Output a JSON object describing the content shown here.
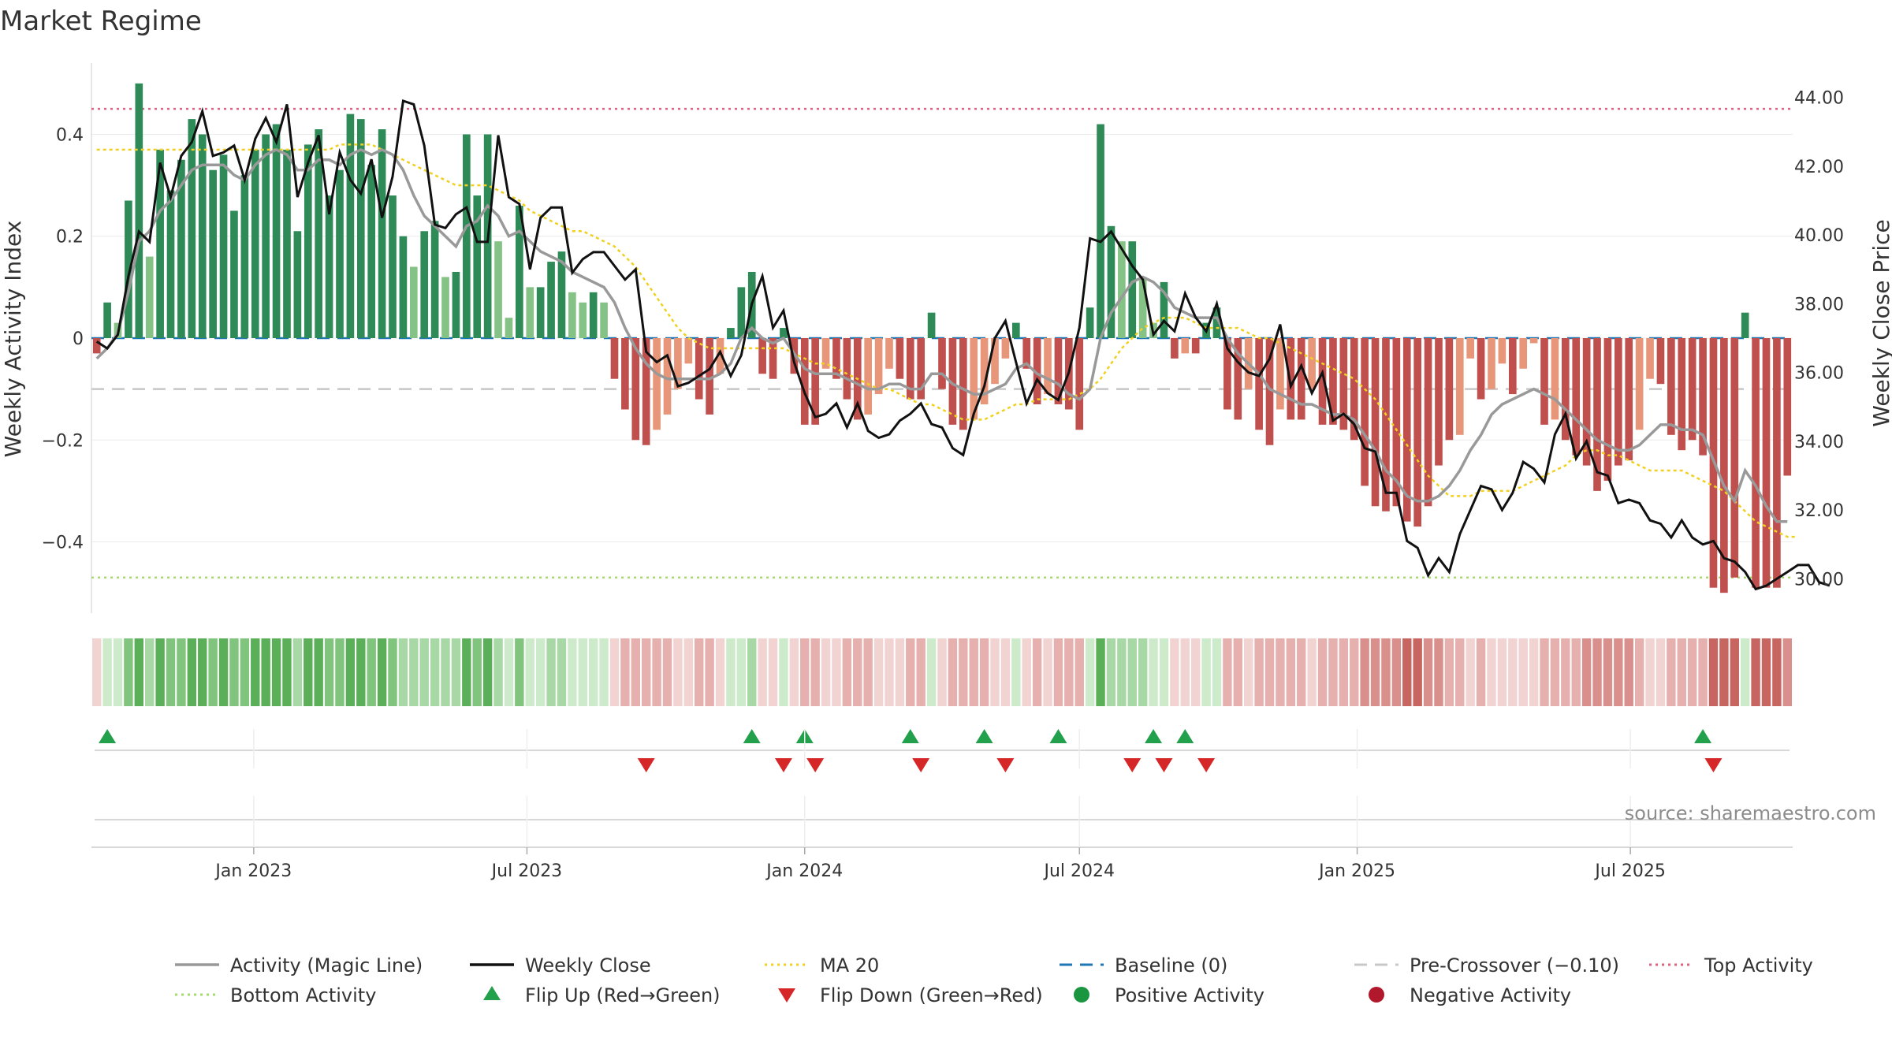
{
  "title": "Market Regime",
  "source": "source: sharemaestro.com",
  "colors": {
    "dark_green": "#2e8b57",
    "light_green": "#85c285",
    "dark_red": "#c0504d",
    "light_red": "#e8967a",
    "magic_line": "#999999",
    "weekly_close": "#111111",
    "ma20": "#f0d020",
    "baseline": "#1f77b4",
    "pre_crossover": "#c8c8c8",
    "top_activity": "#e06080",
    "bottom_activity": "#a8d870",
    "flip_up": "#22a04b",
    "flip_down": "#d62728",
    "positive": "#1a9641",
    "negative": "#b2182b"
  },
  "chart_data": {
    "type": "bar",
    "start_week": "2022-09-19",
    "x_ticks": [
      "Jan 2023",
      "Jul 2023",
      "Jan 2024",
      "Jul 2024",
      "Jan 2025",
      "Jul 2025"
    ],
    "x_tick_dates": [
      "2023-01-01",
      "2023-07-01",
      "2024-01-01",
      "2024-07-01",
      "2025-01-01",
      "2025-07-01"
    ],
    "y_left": {
      "label": "Weekly Activity Index",
      "ticks": [
        "−0.4",
        "−0.2",
        "0",
        "0.2",
        "0.4"
      ],
      "tick_values": [
        -0.4,
        -0.2,
        0,
        0.2,
        0.4
      ],
      "range": [
        -0.54,
        0.54
      ]
    },
    "y_right": {
      "label": "Weekly Close Price",
      "ticks": [
        "30.00",
        "32.00",
        "34.00",
        "36.00",
        "38.00",
        "40.00",
        "42.00",
        "44.00"
      ],
      "tick_values": [
        30,
        32,
        34,
        36,
        38,
        40,
        42,
        44
      ],
      "range": [
        29.0,
        45.0
      ]
    },
    "levels": {
      "baseline": 0,
      "pre_crossover": -0.1,
      "top_activity": 0.45,
      "bottom_activity": -0.47
    },
    "activity": [
      -0.03,
      0.07,
      0.03,
      0.27,
      0.5,
      0.16,
      0.37,
      0.29,
      0.35,
      0.43,
      0.4,
      0.33,
      0.36,
      0.25,
      0.32,
      0.37,
      0.4,
      0.42,
      0.37,
      0.21,
      0.38,
      0.41,
      0.28,
      0.33,
      0.44,
      0.43,
      0.34,
      0.41,
      0.28,
      0.2,
      0.14,
      0.21,
      0.23,
      0.12,
      0.13,
      0.4,
      0.28,
      0.4,
      0.19,
      0.04,
      0.26,
      0.1,
      0.1,
      0.15,
      0.17,
      0.09,
      0.07,
      0.09,
      0.07,
      -0.08,
      -0.14,
      -0.2,
      -0.21,
      -0.18,
      -0.15,
      -0.1,
      -0.05,
      -0.12,
      -0.15,
      -0.07,
      0.02,
      0.1,
      0.13,
      -0.07,
      -0.08,
      0.02,
      -0.07,
      -0.17,
      -0.17,
      -0.06,
      -0.08,
      -0.12,
      -0.16,
      -0.15,
      -0.11,
      -0.06,
      -0.08,
      -0.12,
      -0.12,
      0.05,
      -0.1,
      -0.17,
      -0.18,
      -0.16,
      -0.13,
      -0.09,
      -0.04,
      0.03,
      -0.06,
      -0.13,
      -0.11,
      -0.13,
      -0.14,
      -0.18,
      0.06,
      0.42,
      0.22,
      0.19,
      0.19,
      0.12,
      0.03,
      0.11,
      -0.04,
      -0.03,
      -0.03,
      0.03,
      0.06,
      -0.14,
      -0.16,
      -0.1,
      -0.18,
      -0.21,
      -0.14,
      -0.16,
      -0.16,
      -0.1,
      -0.17,
      -0.17,
      -0.18,
      -0.2,
      -0.29,
      -0.33,
      -0.34,
      -0.33,
      -0.36,
      -0.37,
      -0.33,
      -0.25,
      -0.2,
      -0.19,
      -0.04,
      -0.12,
      -0.1,
      -0.05,
      -0.11,
      -0.06,
      -0.01,
      -0.17,
      -0.16,
      -0.2,
      -0.23,
      -0.25,
      -0.3,
      -0.28,
      -0.25,
      -0.24,
      -0.18,
      -0.08,
      -0.09,
      -0.19,
      -0.22,
      -0.2,
      -0.23,
      -0.49,
      -0.5,
      -0.47,
      0.05,
      -0.49,
      -0.49,
      -0.49,
      -0.27
    ],
    "weekly_close": [
      36.9,
      36.7,
      37.1,
      38.8,
      40.1,
      39.8,
      42.1,
      41.1,
      42.3,
      42.7,
      43.6,
      42.3,
      42.4,
      42.6,
      41.6,
      42.8,
      43.4,
      42.7,
      43.8,
      41.1,
      42.1,
      42.9,
      40.6,
      42.4,
      41.6,
      41.2,
      42.2,
      40.5,
      41.7,
      43.9,
      43.8,
      42.6,
      40.3,
      40.2,
      40.6,
      40.8,
      39.8,
      39.8,
      42.9,
      41.1,
      40.9,
      39.0,
      40.5,
      40.8,
      40.8,
      38.9,
      39.3,
      39.5,
      39.5,
      39.1,
      38.7,
      39.0,
      36.6,
      36.3,
      36.5,
      35.6,
      35.7,
      35.9,
      36.1,
      36.6,
      35.9,
      36.5,
      38.0,
      38.8,
      37.3,
      37.8,
      36.3,
      35.4,
      34.7,
      34.8,
      35.1,
      34.4,
      35.1,
      34.3,
      34.1,
      34.2,
      34.6,
      34.8,
      35.1,
      34.5,
      34.4,
      33.8,
      33.6,
      34.8,
      35.6,
      37.0,
      37.5,
      36.3,
      35.1,
      35.8,
      35.4,
      35.2,
      36.0,
      37.3,
      39.9,
      39.8,
      40.1,
      39.6,
      39.1,
      38.7,
      37.1,
      37.5,
      37.2,
      38.3,
      37.6,
      37.2,
      38.0,
      36.7,
      36.3,
      36.0,
      35.9,
      36.4,
      37.4,
      35.6,
      36.2,
      35.4,
      36.0,
      34.6,
      34.8,
      34.5,
      33.8,
      33.7,
      32.5,
      32.5,
      31.1,
      30.9,
      30.1,
      30.6,
      30.2,
      31.3,
      32.0,
      32.7,
      32.6,
      32.0,
      32.5,
      33.4,
      33.2,
      32.8,
      34.2,
      34.8,
      33.5,
      34.0,
      33.1,
      33.0,
      32.2,
      32.3,
      32.2,
      31.7,
      31.6,
      31.2,
      31.7,
      31.2,
      31.0,
      31.1,
      30.6,
      30.5,
      30.2,
      29.7,
      29.8,
      30.0,
      30.2,
      30.4,
      30.4,
      29.9,
      29.8
    ],
    "magic_line": [
      -0.04,
      -0.02,
      0.01,
      0.09,
      0.19,
      0.21,
      0.25,
      0.27,
      0.3,
      0.33,
      0.34,
      0.34,
      0.34,
      0.32,
      0.31,
      0.34,
      0.36,
      0.37,
      0.36,
      0.33,
      0.33,
      0.35,
      0.35,
      0.34,
      0.36,
      0.37,
      0.36,
      0.37,
      0.36,
      0.33,
      0.28,
      0.24,
      0.22,
      0.2,
      0.18,
      0.22,
      0.23,
      0.26,
      0.24,
      0.2,
      0.21,
      0.19,
      0.17,
      0.16,
      0.15,
      0.13,
      0.12,
      0.11,
      0.1,
      0.07,
      0.02,
      -0.02,
      -0.05,
      -0.07,
      -0.08,
      -0.08,
      -0.08,
      -0.08,
      -0.08,
      -0.07,
      -0.05,
      0.0,
      0.02,
      0.0,
      -0.01,
      0.0,
      -0.03,
      -0.06,
      -0.07,
      -0.07,
      -0.07,
      -0.08,
      -0.09,
      -0.1,
      -0.1,
      -0.09,
      -0.09,
      -0.1,
      -0.1,
      -0.07,
      -0.07,
      -0.09,
      -0.1,
      -0.11,
      -0.11,
      -0.1,
      -0.09,
      -0.06,
      -0.05,
      -0.07,
      -0.08,
      -0.09,
      -0.11,
      -0.12,
      -0.1,
      0.0,
      0.05,
      0.08,
      0.11,
      0.12,
      0.11,
      0.09,
      0.06,
      0.05,
      0.04,
      0.04,
      0.04,
      0.0,
      -0.03,
      -0.05,
      -0.07,
      -0.1,
      -0.11,
      -0.12,
      -0.13,
      -0.13,
      -0.14,
      -0.15,
      -0.15,
      -0.16,
      -0.19,
      -0.22,
      -0.26,
      -0.28,
      -0.31,
      -0.32,
      -0.32,
      -0.31,
      -0.29,
      -0.26,
      -0.22,
      -0.19,
      -0.15,
      -0.13,
      -0.12,
      -0.11,
      -0.1,
      -0.11,
      -0.12,
      -0.14,
      -0.16,
      -0.18,
      -0.2,
      -0.21,
      -0.22,
      -0.22,
      -0.21,
      -0.19,
      -0.17,
      -0.17,
      -0.18,
      -0.18,
      -0.19,
      -0.24,
      -0.29,
      -0.32,
      -0.26,
      -0.29,
      -0.33,
      -0.36,
      -0.36
    ],
    "ma20": [
      0.37,
      0.37,
      0.37,
      0.37,
      0.37,
      0.37,
      0.37,
      0.37,
      0.37,
      0.37,
      0.37,
      0.37,
      0.37,
      0.37,
      0.37,
      0.37,
      0.37,
      0.37,
      0.37,
      0.37,
      0.37,
      0.37,
      0.37,
      0.38,
      0.38,
      0.38,
      0.38,
      0.37,
      0.36,
      0.35,
      0.34,
      0.33,
      0.32,
      0.31,
      0.3,
      0.3,
      0.3,
      0.3,
      0.29,
      0.28,
      0.27,
      0.25,
      0.24,
      0.23,
      0.22,
      0.21,
      0.21,
      0.2,
      0.19,
      0.18,
      0.16,
      0.14,
      0.11,
      0.08,
      0.05,
      0.02,
      0.0,
      -0.01,
      -0.02,
      -0.02,
      -0.02,
      -0.02,
      -0.02,
      -0.02,
      -0.02,
      -0.02,
      -0.03,
      -0.04,
      -0.05,
      -0.05,
      -0.06,
      -0.07,
      -0.08,
      -0.09,
      -0.1,
      -0.1,
      -0.11,
      -0.12,
      -0.13,
      -0.13,
      -0.14,
      -0.15,
      -0.16,
      -0.16,
      -0.16,
      -0.15,
      -0.14,
      -0.13,
      -0.13,
      -0.12,
      -0.12,
      -0.12,
      -0.12,
      -0.11,
      -0.1,
      -0.08,
      -0.05,
      -0.02,
      0.0,
      0.02,
      0.03,
      0.04,
      0.04,
      0.04,
      0.03,
      0.02,
      0.02,
      0.02,
      0.02,
      0.01,
      0.0,
      0.0,
      -0.01,
      -0.02,
      -0.03,
      -0.04,
      -0.05,
      -0.06,
      -0.07,
      -0.08,
      -0.1,
      -0.12,
      -0.15,
      -0.18,
      -0.21,
      -0.24,
      -0.27,
      -0.29,
      -0.31,
      -0.31,
      -0.31,
      -0.3,
      -0.3,
      -0.3,
      -0.3,
      -0.29,
      -0.28,
      -0.27,
      -0.26,
      -0.25,
      -0.23,
      -0.22,
      -0.22,
      -0.23,
      -0.23,
      -0.24,
      -0.25,
      -0.26,
      -0.26,
      -0.26,
      -0.26,
      -0.27,
      -0.28,
      -0.29,
      -0.3,
      -0.32,
      -0.34,
      -0.36,
      -0.37,
      -0.38,
      -0.39,
      -0.39
    ],
    "flip_up_weeks": [
      1,
      62,
      67,
      77,
      84,
      91,
      100,
      103,
      152
    ],
    "flip_down_weeks": [
      52,
      65,
      68,
      78,
      86,
      98,
      101,
      105,
      153
    ],
    "legend": [
      {
        "label": "Activity (Magic Line)",
        "kind": "line",
        "color_key": "magic_line"
      },
      {
        "label": "Weekly Close",
        "kind": "line",
        "color_key": "weekly_close"
      },
      {
        "label": "MA 20",
        "kind": "dotted",
        "color_key": "ma20"
      },
      {
        "label": "Baseline (0)",
        "kind": "dashed",
        "color_key": "baseline"
      },
      {
        "label": "Pre-Crossover (−0.10)",
        "kind": "dashed",
        "color_key": "pre_crossover"
      },
      {
        "label": "Top Activity",
        "kind": "dotted",
        "color_key": "top_activity"
      },
      {
        "label": "Bottom Activity",
        "kind": "dotted",
        "color_key": "bottom_activity"
      },
      {
        "label": "Flip Up (Red→Green)",
        "kind": "triangle-up",
        "color_key": "flip_up"
      },
      {
        "label": "Flip Down (Green→Red)",
        "kind": "triangle-down",
        "color_key": "flip_down"
      },
      {
        "label": "Positive Activity",
        "kind": "circle",
        "color_key": "positive"
      },
      {
        "label": "Negative Activity",
        "kind": "circle",
        "color_key": "negative"
      }
    ]
  }
}
